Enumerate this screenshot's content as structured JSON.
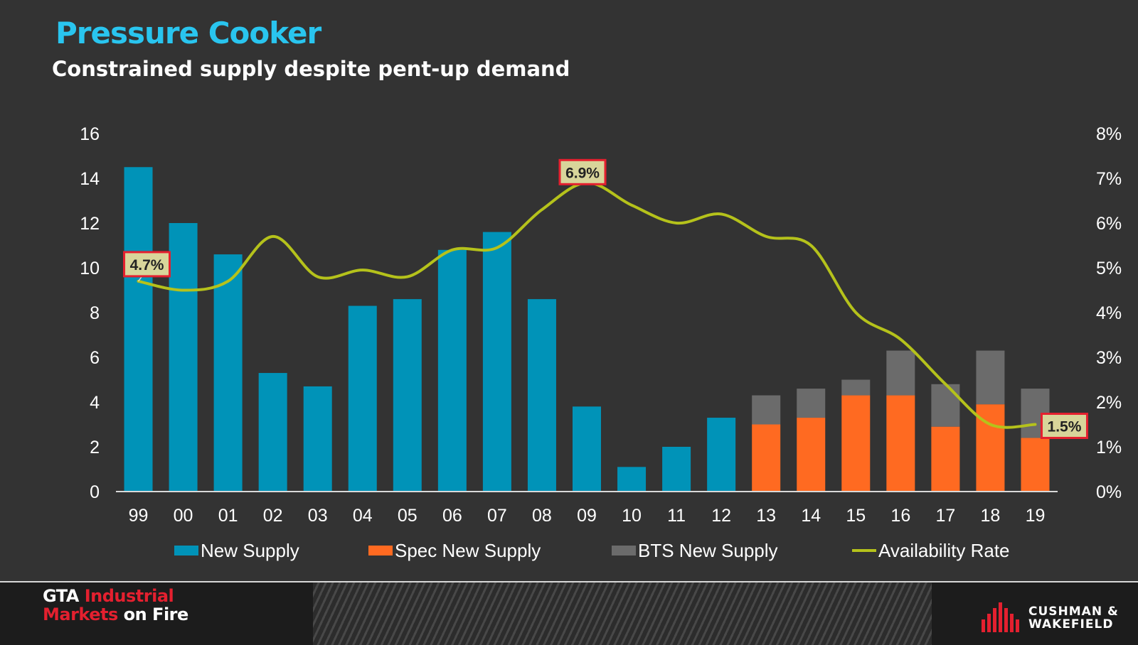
{
  "header": {
    "title": "Pressure Cooker",
    "subtitle": "Constrained supply despite pent-up demand"
  },
  "colors": {
    "background": "#333333",
    "title": "#29c5ef",
    "new_supply": "#0093b8",
    "spec_new_supply": "#ff6a21",
    "bts_new_supply": "#6b6b6b",
    "availability_rate": "#b5c21b",
    "callout_fill": "#d8d59a",
    "callout_border": "#e4202f"
  },
  "chart_data": {
    "type": "bar",
    "stacked": true,
    "categories": [
      "99",
      "00",
      "01",
      "02",
      "03",
      "04",
      "05",
      "06",
      "07",
      "08",
      "09",
      "10",
      "11",
      "12",
      "13",
      "14",
      "15",
      "16",
      "17",
      "18",
      "19"
    ],
    "series": [
      {
        "name": "New Supply",
        "kind": "bar",
        "axis": "left",
        "values": [
          14.5,
          12.0,
          10.6,
          5.3,
          4.7,
          8.3,
          8.6,
          10.8,
          11.6,
          8.6,
          3.8,
          1.1,
          2.0,
          3.3,
          0,
          0,
          0,
          0,
          0,
          0,
          0
        ]
      },
      {
        "name": "Spec New Supply",
        "kind": "bar",
        "axis": "left",
        "values": [
          0,
          0,
          0,
          0,
          0,
          0,
          0,
          0,
          0,
          0,
          0,
          0,
          0,
          0,
          3.0,
          3.3,
          4.3,
          4.3,
          2.9,
          3.9,
          2.4
        ]
      },
      {
        "name": "BTS New Supply",
        "kind": "bar",
        "axis": "left",
        "values": [
          0,
          0,
          0,
          0,
          0,
          0,
          0,
          0,
          0,
          0,
          0,
          0,
          0,
          0,
          1.3,
          1.3,
          0.7,
          2.0,
          1.9,
          2.4,
          2.2
        ]
      },
      {
        "name": "Availability Rate",
        "kind": "line",
        "axis": "right",
        "values": [
          4.7,
          4.5,
          4.7,
          5.7,
          4.8,
          4.95,
          4.8,
          5.4,
          5.45,
          6.3,
          6.9,
          6.4,
          6.0,
          6.2,
          5.7,
          5.5,
          4.0,
          3.4,
          2.4,
          1.5,
          1.5
        ]
      }
    ],
    "ylim_left": [
      0,
      16
    ],
    "yticks_left": [
      "0",
      "2",
      "4",
      "6",
      "8",
      "10",
      "12",
      "14",
      "16"
    ],
    "ylim_right": [
      0,
      8
    ],
    "yticks_right": [
      "0%",
      "1%",
      "2%",
      "3%",
      "4%",
      "5%",
      "6%",
      "7%",
      "8%"
    ],
    "annotations": [
      {
        "index": 0,
        "label": "4.7%"
      },
      {
        "index": 10,
        "label": "6.9%"
      },
      {
        "index": 20,
        "label": "1.5%"
      }
    ],
    "legend": [
      "New Supply",
      "Spec New Supply",
      "BTS New Supply",
      "Availability Rate"
    ],
    "legend_position": "bottom",
    "grid": false
  },
  "footer": {
    "brand_line1_white": "GTA ",
    "brand_line1_red": "Industrial",
    "brand_line2_red": "Markets ",
    "brand_line2_white": "on Fire",
    "company_line1": "CUSHMAN &",
    "company_line2": "WAKEFIELD"
  }
}
